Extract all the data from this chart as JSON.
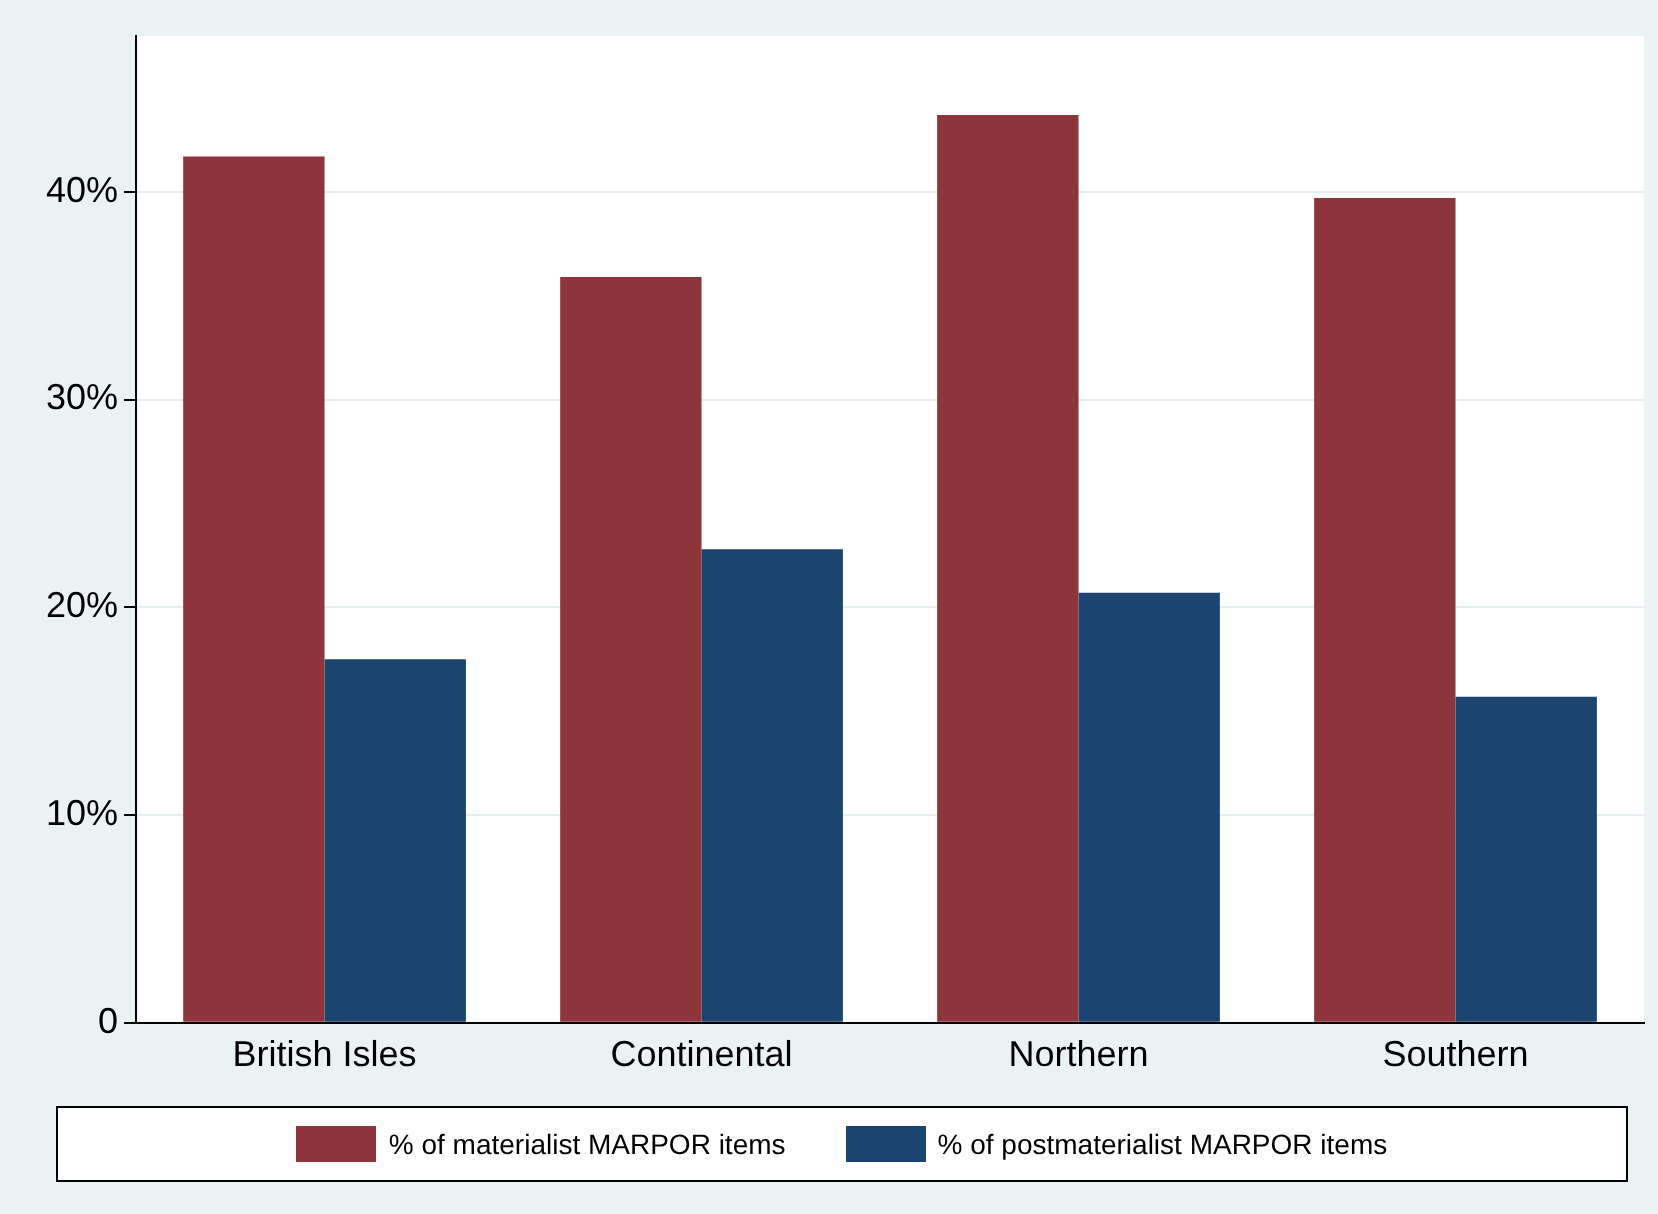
{
  "chart_data": {
    "type": "bar",
    "categories": [
      "British Isles",
      "Continental",
      "Northern",
      "Southern"
    ],
    "series": [
      {
        "name": "% of materialist MARPOR items",
        "color": "#8e353c",
        "values": [
          41.7,
          35.9,
          43.7,
          39.7
        ]
      },
      {
        "name": "% of postmaterialist MARPOR items",
        "color": "#1b456e",
        "values": [
          17.5,
          22.8,
          20.7,
          15.7
        ]
      }
    ],
    "ylim": [
      0,
      47.5
    ],
    "yticks": [
      {
        "value": 0,
        "label": "0"
      },
      {
        "value": 10,
        "label": "10%"
      },
      {
        "value": 20,
        "label": "20%"
      },
      {
        "value": 30,
        "label": "30%"
      },
      {
        "value": 40,
        "label": "40%"
      }
    ],
    "grid": "y",
    "legend": "bottom"
  }
}
